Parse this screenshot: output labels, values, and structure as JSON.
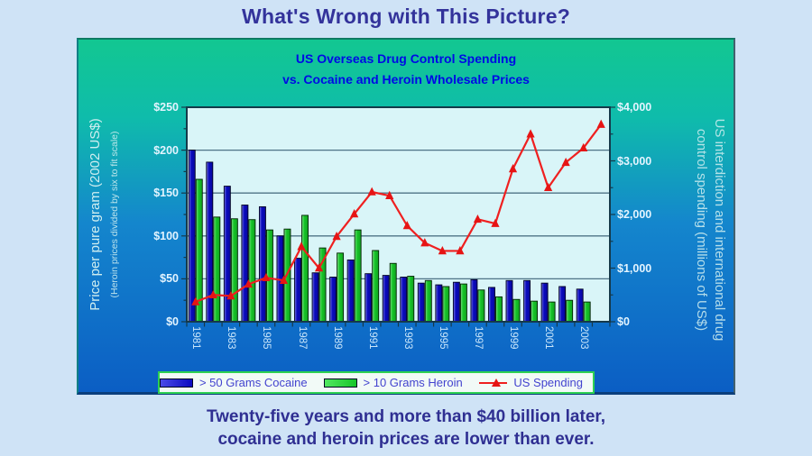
{
  "page": {
    "heading": "What's Wrong with This Picture?",
    "caption_line1": "Twenty-five years and more than $40 billion later,",
    "caption_line2": "cocaine and heroin prices are lower than ever."
  },
  "chart_data": {
    "type": "bar",
    "subtype": "combo-bar-line-dual-axis",
    "title_line1": "US Overseas Drug Control Spending",
    "title_line2": "vs. Cocaine and Heroin Wholesale Prices",
    "grid": true,
    "legend_position": "bottom",
    "x": {
      "bar_years": [
        1981,
        1982,
        1983,
        1984,
        1985,
        1986,
        1987,
        1988,
        1989,
        1990,
        1991,
        1992,
        1993,
        1994,
        1995,
        1996,
        1997,
        1998,
        1999,
        2000,
        2001,
        2002,
        2003
      ],
      "tick_labels": [
        "1981",
        "1983",
        "1985",
        "1987",
        "1989",
        "1991",
        "1993",
        "1995",
        "1997",
        "1999",
        "2001",
        "2003"
      ]
    },
    "left_axis": {
      "title": "Price per pure gram (2002 US$)",
      "subtitle": "(Heroin prices divided by six to fit scale)",
      "tick_labels": [
        "$0",
        "$50",
        "$100",
        "$150",
        "$200",
        "$250"
      ],
      "min": 0,
      "max": 250,
      "step": 50
    },
    "right_axis": {
      "title_line1": "US interdiction and international drug",
      "title_line2": "control spending (millions of US$)",
      "tick_labels": [
        "$0",
        "$1,000",
        "$2,000",
        "$3,000",
        "$4,000"
      ],
      "min": 0,
      "max": 4000,
      "step": 1000
    },
    "series": [
      {
        "name": "> 50 Grams Cocaine",
        "type": "bar",
        "axis": "left",
        "values": [
          200,
          186,
          158,
          136,
          134,
          100,
          74,
          57,
          52,
          72,
          56,
          54,
          52,
          45,
          43,
          46,
          49,
          40,
          48,
          48,
          45,
          41,
          38
        ]
      },
      {
        "name": "> 10 Grams Heroin",
        "type": "bar",
        "axis": "left",
        "values": [
          166,
          122,
          120,
          119,
          107,
          108,
          124,
          86,
          80,
          107,
          83,
          68,
          53,
          48,
          41,
          44,
          37,
          29,
          26,
          24,
          23,
          25,
          23
        ]
      },
      {
        "name": "US Spending",
        "type": "line",
        "axis": "right",
        "years": [
          1981,
          1982,
          1983,
          1984,
          1985,
          1986,
          1987,
          1988,
          1989,
          1990,
          1991,
          1992,
          1993,
          1994,
          1995,
          1996,
          1997,
          1998,
          1999,
          2000,
          2001,
          2002,
          2003,
          2004
        ],
        "values": [
          370,
          500,
          480,
          700,
          820,
          770,
          1400,
          1000,
          1590,
          2010,
          2420,
          2350,
          1790,
          1470,
          1320,
          1320,
          1910,
          1830,
          2850,
          3500,
          2500,
          2970,
          3240,
          3680
        ]
      }
    ]
  },
  "colors": {
    "page_bg": "#cfe3f6",
    "heading_text": "#33339b",
    "panel_top": "#12c791",
    "panel_upper": "#0fbcab",
    "panel_mid": "#1486cd",
    "panel_bottom": "#0b5ec4",
    "plot_bg": "#d9f5f8",
    "gridline": "#4f7486",
    "plot_border": "#15394a",
    "cocaine": "#0a0ac0",
    "heroin": "#16c528",
    "spending": "#ef2020",
    "spending_marker": "#e61414",
    "tick_label": "#e3f4ff",
    "year_label": "#c9e6fb",
    "axis_title": "#cfeef0",
    "chart_title": "#0009e6",
    "legend_bg": "#f2faf7",
    "legend_border": "#2ed152",
    "legend_text": "#4343cf",
    "caption_text": "#2f2f92"
  }
}
